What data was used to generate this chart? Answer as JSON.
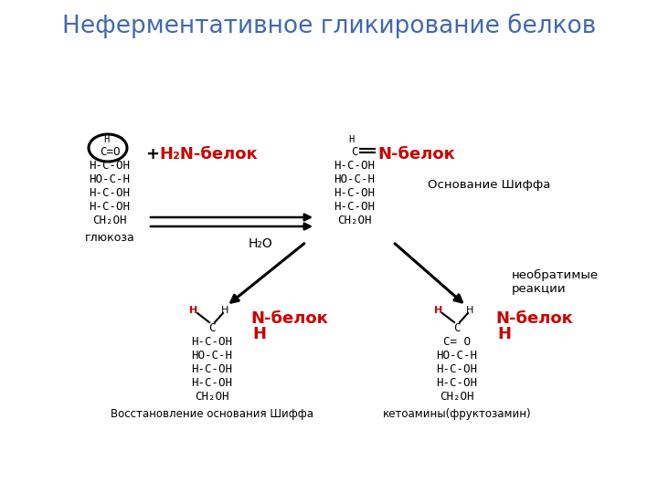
{
  "title": "Неферментативное гликирование белков",
  "title_color": "#4169b0",
  "title_fontsize": 19,
  "bg_color": "#ffffff",
  "red_color": "#cc0000",
  "black_color": "#000000",
  "glucose_label": "глюкоза",
  "schiff_base_label": "Основание Шиффа",
  "reduced_label": "Восстановление основания Шиффа",
  "ketoamine_label": "кетоамины(фруктозамин)",
  "h2o_label": "H₂O",
  "irreversible_label": "необратимые\nреакции"
}
